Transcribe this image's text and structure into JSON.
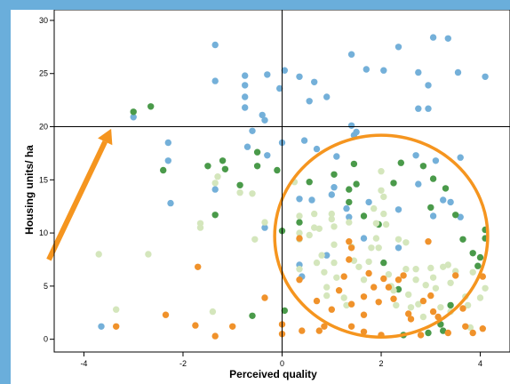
{
  "chart_data": {
    "type": "scatter",
    "xlabel": "Perceived quality",
    "ylabel": "Housing units/ ha",
    "xlim": [
      -4.6,
      4.6
    ],
    "ylim": [
      -1.2,
      31
    ],
    "x_ticks": [
      -4,
      -2,
      0,
      2,
      4
    ],
    "y_ticks": [
      0,
      5,
      10,
      15,
      20,
      25,
      30
    ],
    "reference_lines": {
      "x": 0,
      "y": 20
    },
    "grid": false,
    "legend": "none",
    "colors": {
      "blue": "#74b0d9",
      "dark_green": "#4a9a4a",
      "light_green": "#d4e6bc",
      "orange": "#f0922b",
      "annotation": "#f5951f"
    },
    "annotation": {
      "arrow": {
        "from": [
          -4.4,
          10.5
        ],
        "to": [
          -3.45,
          19.8
        ]
      },
      "ellipse": {
        "center": [
          2.0,
          9.7
        ],
        "radius_x": 2.15,
        "radius_y": 9.5
      }
    },
    "series": [
      {
        "color_key": "blue",
        "points": [
          [
            -1.35,
            27.7
          ],
          [
            -0.75,
            24.8
          ],
          [
            -0.75,
            23.9
          ],
          [
            -1.35,
            24.3
          ],
          [
            -0.3,
            24.9
          ],
          [
            -0.05,
            23.6
          ],
          [
            0.05,
            25.3
          ],
          [
            0.35,
            24.7
          ],
          [
            0.65,
            24.2
          ],
          [
            0.9,
            22.8
          ],
          [
            0.55,
            22.4
          ],
          [
            1.4,
            26.8
          ],
          [
            1.7,
            25.4
          ],
          [
            2.05,
            25.3
          ],
          [
            2.35,
            27.5
          ],
          [
            2.75,
            25.1
          ],
          [
            3.05,
            28.4
          ],
          [
            3.35,
            28.3
          ],
          [
            3.55,
            25.1
          ],
          [
            4.1,
            24.7
          ],
          [
            2.95,
            23.9
          ],
          [
            2.75,
            21.7
          ],
          [
            2.95,
            21.7
          ],
          [
            -0.75,
            21.8
          ],
          [
            -0.75,
            22.8
          ],
          [
            -0.4,
            21.1
          ],
          [
            -0.35,
            20.6
          ],
          [
            0.0,
            18.5
          ],
          [
            0.45,
            18.7
          ],
          [
            0.7,
            17.9
          ],
          [
            1.1,
            17.2
          ],
          [
            1.4,
            20.1
          ],
          [
            1.45,
            19.2
          ],
          [
            1.5,
            19.5
          ],
          [
            -2.3,
            18.5
          ],
          [
            -2.3,
            16.8
          ],
          [
            -0.7,
            18.1
          ],
          [
            -0.6,
            19.6
          ],
          [
            -0.3,
            17.3
          ],
          [
            2.7,
            17.3
          ],
          [
            2.75,
            14.6
          ],
          [
            3.1,
            16.8
          ],
          [
            3.6,
            17.1
          ],
          [
            -2.25,
            12.8
          ],
          [
            0.35,
            13.2
          ],
          [
            0.6,
            13.1
          ],
          [
            1.05,
            14.3
          ],
          [
            1.3,
            12.3
          ],
          [
            1.35,
            11.5
          ],
          [
            1.75,
            12.9
          ],
          [
            2.35,
            12.2
          ],
          [
            3.05,
            11.6
          ],
          [
            3.25,
            13.1
          ],
          [
            3.4,
            12.9
          ],
          [
            3.6,
            11.5
          ],
          [
            -0.35,
            10.5
          ],
          [
            1.65,
            9.5
          ],
          [
            2.35,
            8.6
          ],
          [
            0.35,
            7.0
          ],
          [
            0.4,
            5.9
          ],
          [
            0.9,
            7.9
          ],
          [
            -3.0,
            20.9
          ],
          [
            1.0,
            13.6
          ],
          [
            -1.35,
            14.1
          ],
          [
            -3.65,
            1.2
          ]
        ]
      },
      {
        "color_key": "dark_green",
        "points": [
          [
            -3.0,
            21.4
          ],
          [
            -2.65,
            21.9
          ],
          [
            -2.4,
            15.9
          ],
          [
            -1.5,
            16.3
          ],
          [
            -1.15,
            16.0
          ],
          [
            -1.2,
            16.8
          ],
          [
            -0.5,
            17.6
          ],
          [
            -0.5,
            16.3
          ],
          [
            -0.85,
            14.5
          ],
          [
            -0.1,
            15.9
          ],
          [
            -1.35,
            11.7
          ],
          [
            0.35,
            11.0
          ],
          [
            0.55,
            14.8
          ],
          [
            1.05,
            15.5
          ],
          [
            1.45,
            16.5
          ],
          [
            1.5,
            14.6
          ],
          [
            1.35,
            14.1
          ],
          [
            1.65,
            11.6
          ],
          [
            1.95,
            10.8
          ],
          [
            2.4,
            16.6
          ],
          [
            2.25,
            14.7
          ],
          [
            2.85,
            16.3
          ],
          [
            3.05,
            15.1
          ],
          [
            3.3,
            14.2
          ],
          [
            3.0,
            12.4
          ],
          [
            3.5,
            11.7
          ],
          [
            3.65,
            9.4
          ],
          [
            3.85,
            8.1
          ],
          [
            3.95,
            6.9
          ],
          [
            4.0,
            7.7
          ],
          [
            4.1,
            9.5
          ],
          [
            4.1,
            10.3
          ],
          [
            -0.6,
            2.2
          ],
          [
            0.05,
            2.7
          ],
          [
            1.35,
            12.9
          ],
          [
            2.05,
            7.2
          ],
          [
            2.45,
            0.4
          ],
          [
            2.35,
            4.7
          ],
          [
            2.95,
            0.6
          ],
          [
            3.2,
            1.4
          ],
          [
            3.25,
            0.8
          ],
          [
            3.4,
            3.2
          ],
          [
            0.0,
            10.2
          ]
        ]
      },
      {
        "color_key": "light_green",
        "points": [
          [
            -3.7,
            8.0
          ],
          [
            -2.7,
            8.0
          ],
          [
            -3.35,
            2.8
          ],
          [
            -1.65,
            10.9
          ],
          [
            -1.65,
            10.5
          ],
          [
            -1.35,
            14.7
          ],
          [
            -1.3,
            15.3
          ],
          [
            -0.85,
            13.8
          ],
          [
            -0.6,
            13.7
          ],
          [
            -0.55,
            9.4
          ],
          [
            -0.35,
            11.0
          ],
          [
            -1.4,
            2.6
          ],
          [
            0.25,
            14.8
          ],
          [
            0.35,
            11.6
          ],
          [
            0.35,
            10.0
          ],
          [
            0.35,
            9.4
          ],
          [
            0.35,
            6.6
          ],
          [
            0.55,
            9.8
          ],
          [
            0.65,
            10.5
          ],
          [
            0.65,
            11.8
          ],
          [
            0.7,
            7.2
          ],
          [
            0.8,
            7.9
          ],
          [
            0.85,
            6.3
          ],
          [
            0.9,
            4.9
          ],
          [
            0.9,
            4.1
          ],
          [
            1.0,
            11.8
          ],
          [
            1.0,
            11.3
          ],
          [
            1.05,
            10.6
          ],
          [
            1.05,
            8.9
          ],
          [
            1.05,
            7.2
          ],
          [
            1.1,
            5.8
          ],
          [
            1.25,
            3.9
          ],
          [
            1.3,
            3.2
          ],
          [
            1.35,
            11.0
          ],
          [
            1.4,
            8.7
          ],
          [
            1.45,
            7.4
          ],
          [
            1.55,
            6.8
          ],
          [
            1.65,
            5.6
          ],
          [
            1.85,
            12.3
          ],
          [
            1.9,
            10.9
          ],
          [
            1.9,
            9.5
          ],
          [
            1.95,
            8.6
          ],
          [
            2.0,
            15.8
          ],
          [
            2.0,
            14.0
          ],
          [
            2.05,
            13.4
          ],
          [
            2.05,
            11.8
          ],
          [
            2.1,
            10.8
          ],
          [
            2.15,
            6.1
          ],
          [
            2.2,
            5.0
          ],
          [
            2.25,
            4.6
          ],
          [
            2.3,
            3.2
          ],
          [
            2.35,
            9.4
          ],
          [
            2.5,
            9.1
          ],
          [
            2.5,
            6.6
          ],
          [
            2.55,
            4.2
          ],
          [
            2.6,
            3.0
          ],
          [
            2.7,
            6.6
          ],
          [
            2.7,
            5.6
          ],
          [
            2.75,
            3.3
          ],
          [
            2.85,
            2.1
          ],
          [
            2.9,
            5.1
          ],
          [
            3.0,
            6.7
          ],
          [
            3.05,
            5.8
          ],
          [
            3.1,
            4.8
          ],
          [
            3.2,
            3.0
          ],
          [
            3.25,
            6.8
          ],
          [
            3.35,
            7.0
          ],
          [
            3.4,
            5.3
          ],
          [
            3.4,
            2.6
          ],
          [
            3.5,
            6.4
          ],
          [
            3.7,
            4.0
          ],
          [
            3.75,
            3.2
          ],
          [
            3.8,
            1.1
          ],
          [
            3.85,
            6.3
          ],
          [
            4.0,
            3.9
          ],
          [
            4.1,
            4.8
          ],
          [
            0.75,
            10.4
          ],
          [
            1.75,
            7.3
          ],
          [
            1.8,
            8.6
          ]
        ]
      },
      {
        "color_key": "orange",
        "points": [
          [
            -3.35,
            1.2
          ],
          [
            -2.35,
            2.3
          ],
          [
            -1.7,
            6.8
          ],
          [
            -1.75,
            1.3
          ],
          [
            -1.35,
            0.3
          ],
          [
            -1.0,
            1.2
          ],
          [
            -0.35,
            3.9
          ],
          [
            0.0,
            1.4
          ],
          [
            0.0,
            0.5
          ],
          [
            0.35,
            9.5
          ],
          [
            0.35,
            5.6
          ],
          [
            0.4,
            0.8
          ],
          [
            0.7,
            3.6
          ],
          [
            0.75,
            0.8
          ],
          [
            0.85,
            1.2
          ],
          [
            1.0,
            2.8
          ],
          [
            1.15,
            4.6
          ],
          [
            1.25,
            5.9
          ],
          [
            1.35,
            7.5
          ],
          [
            1.4,
            3.3
          ],
          [
            1.4,
            1.2
          ],
          [
            1.35,
            9.2
          ],
          [
            1.4,
            8.6
          ],
          [
            1.65,
            4.0
          ],
          [
            1.65,
            2.3
          ],
          [
            1.65,
            0.7
          ],
          [
            1.75,
            6.2
          ],
          [
            1.85,
            4.9
          ],
          [
            1.95,
            3.5
          ],
          [
            2.0,
            0.4
          ],
          [
            2.05,
            5.7
          ],
          [
            2.15,
            4.9
          ],
          [
            2.25,
            3.8
          ],
          [
            2.35,
            5.6
          ],
          [
            2.45,
            6.0
          ],
          [
            2.55,
            2.4
          ],
          [
            2.6,
            1.9
          ],
          [
            2.8,
            0.4
          ],
          [
            2.85,
            3.6
          ],
          [
            2.95,
            9.2
          ],
          [
            3.0,
            4.1
          ],
          [
            3.05,
            2.6
          ],
          [
            3.15,
            2.1
          ],
          [
            3.35,
            0.6
          ],
          [
            3.5,
            6.0
          ],
          [
            3.65,
            2.9
          ],
          [
            3.7,
            1.2
          ],
          [
            3.85,
            0.6
          ],
          [
            4.05,
            5.9
          ],
          [
            4.05,
            1.0
          ]
        ]
      }
    ]
  }
}
